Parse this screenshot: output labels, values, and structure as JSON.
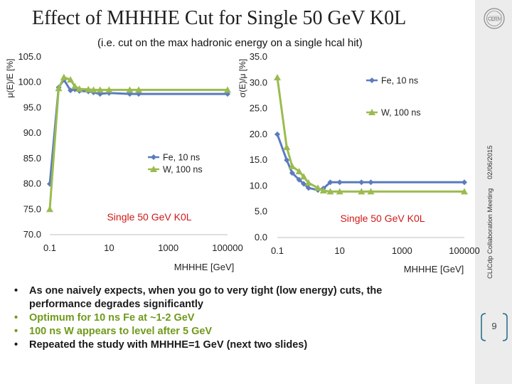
{
  "title": "Effect of MHHHE Cut for Single 50 GeV K0L",
  "subtitle": "(i.e. cut on the max hadronic energy on a single hcal hit)",
  "sidebar": {
    "date": "02/06/2015",
    "meeting": "CLICdp Collaboration Meeting",
    "page": "9"
  },
  "colors": {
    "fe": "#5b7bbf",
    "w": "#9bbb4f",
    "bullet_dark": "#1a1a1a",
    "bullet_green": "#6f9a1c"
  },
  "bullets": [
    {
      "bullet": "•",
      "text": "As one naively expects, when you go to very tight (low energy) cuts, the performance degrades significantly",
      "style": "dark"
    },
    {
      "bullet": "•",
      "text": "Optimum for 10 ns Fe at ~1-2 GeV",
      "style": "green"
    },
    {
      "bullet": "•",
      "text": "100 ns W appears to level after 5 GeV",
      "style": "green"
    },
    {
      "bullet": "•",
      "text": "Repeated the study with MHHHE=1 GeV (next two slides)",
      "style": "dark"
    }
  ],
  "chart_data": [
    {
      "type": "line",
      "xscale": "log",
      "x": [
        0.1,
        0.2,
        0.3,
        0.5,
        0.7,
        1,
        2,
        3,
        5,
        10,
        50,
        100,
        100000
      ],
      "series": [
        {
          "name": "Fe, 10 ns",
          "marker": "diamond",
          "values": [
            80.0,
            99.0,
            100.5,
            98.4,
            98.6,
            98.3,
            98.2,
            98.0,
            97.7,
            97.9,
            97.7,
            97.7,
            97.7
          ]
        },
        {
          "name": "W, 100 ns",
          "marker": "triangle",
          "values": [
            75.0,
            98.8,
            101.0,
            100.5,
            99.2,
            98.7,
            98.6,
            98.5,
            98.5,
            98.5,
            98.5,
            98.5,
            98.5
          ]
        }
      ],
      "ylabel": "μ(E)/E [%]",
      "xlabel": "MHHHE [GeV]",
      "ylim": [
        70,
        105
      ],
      "yticks": [
        "70.0",
        "75.0",
        "80.0",
        "85.0",
        "90.0",
        "95.0",
        "100.0",
        "105.0"
      ],
      "xticks": [
        "0.1",
        "10",
        "1000",
        "100000"
      ],
      "annotation": "Single 50 GeV K0L",
      "legend": "center",
      "grid": false
    },
    {
      "type": "line",
      "xscale": "log",
      "x": [
        0.1,
        0.2,
        0.3,
        0.5,
        0.7,
        1,
        2,
        3,
        5,
        10,
        50,
        100,
        100000
      ],
      "series": [
        {
          "name": "Fe, 10 ns",
          "marker": "diamond",
          "values": [
            20.0,
            15.0,
            12.5,
            11.2,
            10.4,
            9.6,
            9.2,
            9.5,
            10.7,
            10.7,
            10.7,
            10.7,
            10.7
          ]
        },
        {
          "name": "W, 100 ns",
          "marker": "triangle",
          "values": [
            31.0,
            17.5,
            13.8,
            12.8,
            11.8,
            10.6,
            9.6,
            9.1,
            8.9,
            8.9,
            8.9,
            8.9,
            8.9
          ]
        }
      ],
      "ylabel": "σ(E)/μ [%]",
      "xlabel": "MHHHE [GeV]",
      "ylim": [
        0,
        35
      ],
      "yticks": [
        "0.0",
        "5.0",
        "10.0",
        "15.0",
        "20.0",
        "25.0",
        "30.0",
        "35.0"
      ],
      "xticks": [
        "0.1",
        "10",
        "1000",
        "100000"
      ],
      "annotation": "Single 50 GeV K0L",
      "legend": "top-right",
      "grid": false
    }
  ]
}
